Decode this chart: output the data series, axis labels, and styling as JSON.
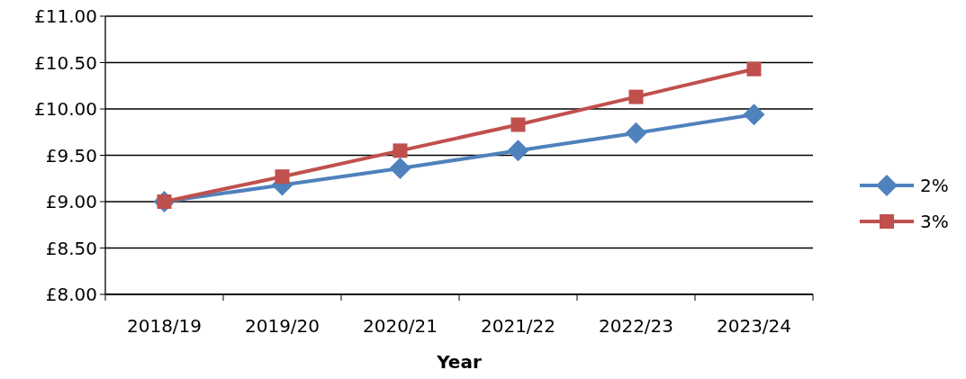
{
  "chart_data": {
    "type": "line",
    "xlabel": "Year",
    "categories": [
      "2018/19",
      "2019/20",
      "2020/21",
      "2021/22",
      "2022/23",
      "2023/24"
    ],
    "series": [
      {
        "name": "2%",
        "color": "#4f81bd",
        "marker": "diamond",
        "values": [
          9.0,
          9.18,
          9.36,
          9.55,
          9.74,
          9.94
        ]
      },
      {
        "name": "3%",
        "color": "#c0504d",
        "marker": "square",
        "values": [
          9.0,
          9.27,
          9.55,
          9.83,
          10.13,
          10.43
        ]
      }
    ],
    "ylim": [
      8,
      11
    ],
    "yticks": [
      {
        "value": 8,
        "label": "£8.00"
      },
      {
        "value": 8.5,
        "label": "£8.50"
      },
      {
        "value": 9,
        "label": "£9.00"
      },
      {
        "value": 9.5,
        "label": "£9.50"
      },
      {
        "value": 10,
        "label": "£10.00"
      },
      {
        "value": 10.5,
        "label": "£10.50"
      },
      {
        "value": 11,
        "label": "£11.00"
      }
    ],
    "grid": "y",
    "legend": "right"
  }
}
